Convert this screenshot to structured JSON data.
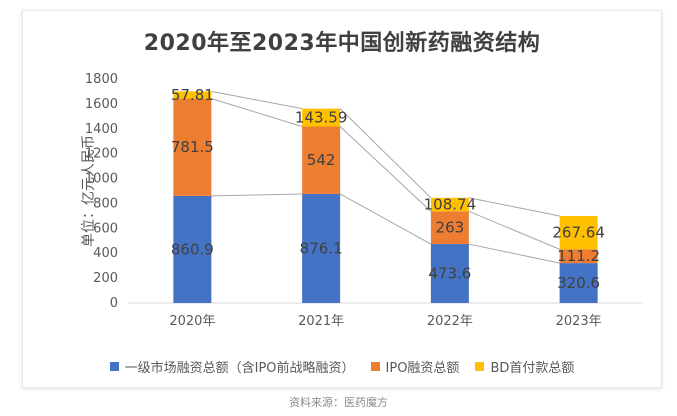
{
  "source_text": "资料来源：医药魔方",
  "chart_data": {
    "type": "bar",
    "stacked": true,
    "title": "2020年至2023年中国创新药融资结构",
    "ylabel": "单位：亿元人民币",
    "xlabel": "",
    "ylim": [
      0,
      1800
    ],
    "yticks": [
      0,
      200,
      400,
      600,
      800,
      1000,
      1200,
      1400,
      1600,
      1800
    ],
    "categories": [
      "2020年",
      "2021年",
      "2022年",
      "2023年"
    ],
    "series": [
      {
        "name": "一级市场融资总额（含IPO前战略融资）",
        "color": "#4472C4",
        "values": [
          860.9,
          876.1,
          473.6,
          320.6
        ],
        "labels": [
          "860.9",
          "876.1",
          "473.6",
          "320.6"
        ]
      },
      {
        "name": "IPO融资总额",
        "color": "#ED7D31",
        "values": [
          781.5,
          542,
          263,
          111.2
        ],
        "labels": [
          "781.5",
          "542",
          "263",
          "111.2"
        ]
      },
      {
        "name": "BD首付款总额",
        "color": "#FFC000",
        "values": [
          57.81,
          143.59,
          108.74,
          267.64
        ],
        "labels": [
          "57.81",
          "143.59",
          "108.74",
          "267.64"
        ]
      }
    ],
    "series_lines": true,
    "grid": false,
    "legend_position": "bottom"
  }
}
